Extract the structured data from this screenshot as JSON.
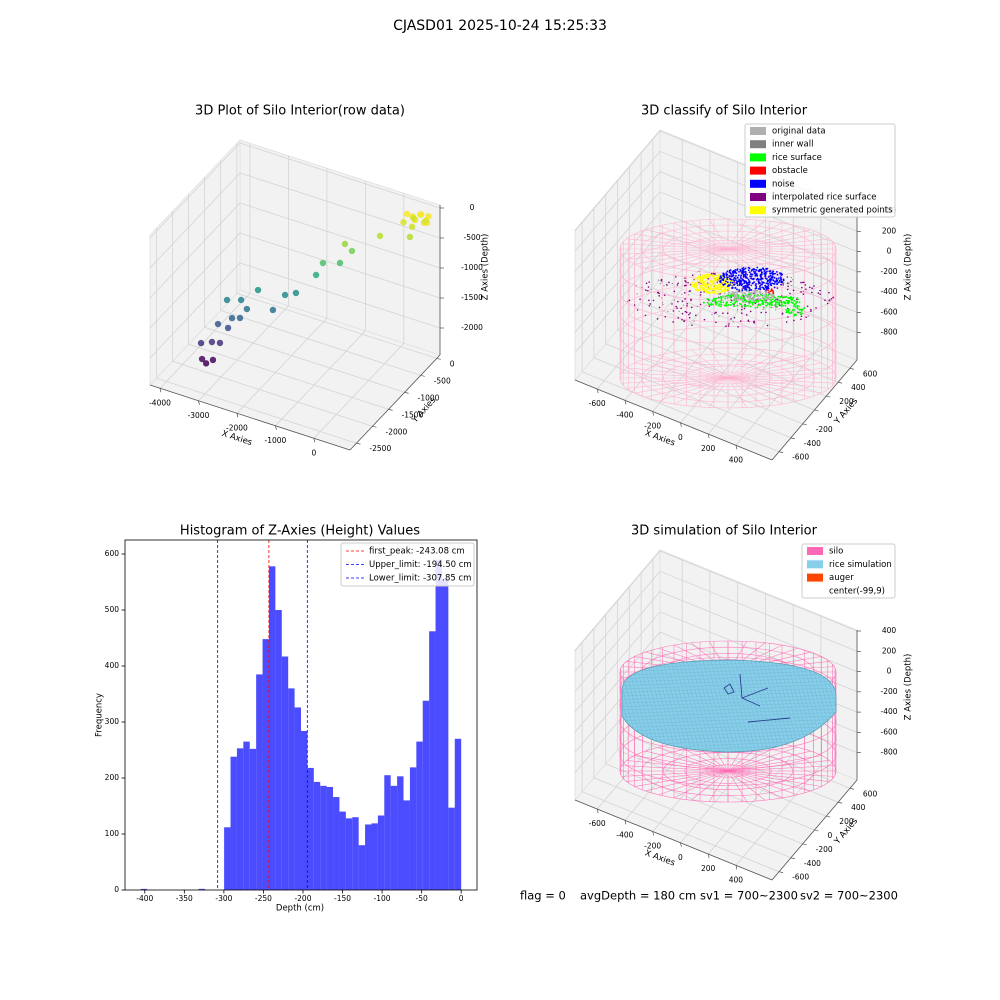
{
  "title": "CJASD01 2025-10-24 15:25:33",
  "chart_data": [
    {
      "type": "scatter3d",
      "title": "3D Plot of Silo Interior(row data)",
      "xlabel": "X Axies",
      "ylabel": "Y Axies",
      "zlabel": "Z Axies (Depth)",
      "xlim": [
        -4260,
        940
      ],
      "ylim": [
        -2700,
        100
      ],
      "zlim": [
        -2450,
        50
      ],
      "xticks": [
        -4000,
        -3000,
        -2000,
        -1000,
        0
      ],
      "yticks": [
        0,
        -500,
        -1000,
        -1500,
        -2000,
        -2500
      ],
      "zticks": [
        0,
        -500,
        -1000,
        -1500,
        -2000
      ],
      "colormap": "viridis",
      "x": [
        456,
        -131,
        -818,
        -682,
        -916,
        -1249,
        -1384,
        -1780,
        -1993,
        -2232,
        -2523,
        -2742,
        -2856,
        -3132,
        -3033,
        -2877,
        -3308,
        -3111,
        -3428,
        -3641,
        -3272,
        -3407,
        -3620,
        -3541,
        200,
        350,
        500,
        650,
        770,
        300,
        450,
        600,
        250,
        550,
        700,
        400
      ],
      "y": [
        -256,
        -485,
        -754,
        -698,
        -790,
        -922,
        -975,
        -1126,
        -1210,
        -1303,
        -1418,
        -1502,
        -1546,
        -1653,
        -1616,
        -1555,
        -1723,
        -1647,
        -1768,
        -1852,
        -1706,
        -1762,
        -1846,
        -1815,
        -150,
        -50,
        -150,
        -50,
        -100,
        50,
        80,
        60,
        -100,
        -20,
        30,
        -120
      ],
      "z": [
        -383,
        -358,
        -483,
        -603,
        -800,
        -795,
        -993,
        -1290,
        -1320,
        -1567,
        -1230,
        -1545,
        -1393,
        -1390,
        -1692,
        -1692,
        -1788,
        -1855,
        -2087,
        -2102,
        -2105,
        -2385,
        -2367,
        -2440,
        -250,
        -180,
        -150,
        -220,
        -170,
        -280,
        -200,
        -260,
        -130,
        -120,
        -150,
        -300
      ]
    },
    {
      "type": "classify3d",
      "title": "3D classify of Silo Interior",
      "xlabel": "X Axies",
      "ylabel": "Y Axies",
      "zlabel": "Z Axies (Depth)",
      "xlim": [
        -760,
        660
      ],
      "ylim": [
        -720,
        720
      ],
      "zlim": [
        -1070,
        410
      ],
      "xticks": [
        -600,
        -400,
        -200,
        0,
        200,
        400
      ],
      "yticks": [
        -600,
        -400,
        -200,
        0,
        200,
        400,
        600
      ],
      "zticks": [
        -800,
        -600,
        -400,
        -200,
        0,
        200,
        400
      ],
      "legend": "upper right",
      "series": [
        {
          "name": "original data",
          "color": "#b0b0b0"
        },
        {
          "name": "inner wall",
          "color": "#808080"
        },
        {
          "name": "rice surface",
          "color": "#00ff00"
        },
        {
          "name": "obstacle",
          "color": "#ff0000"
        },
        {
          "name": "noise",
          "color": "#0000ff"
        },
        {
          "name": "interpolated rice surface",
          "color": "#800080"
        },
        {
          "name": "symmetric generated points",
          "color": "#ffff00"
        }
      ]
    },
    {
      "type": "histogram",
      "title": "Histogram of Z-Axies (Height) Values",
      "xlabel": "Depth (cm)",
      "ylabel": "Frequency",
      "xlim": [
        -425,
        20
      ],
      "ylim": [
        0,
        625
      ],
      "xticks": [
        -400,
        -350,
        -300,
        -250,
        -200,
        -150,
        -100,
        -50,
        0
      ],
      "yticks": [
        0,
        100,
        200,
        300,
        400,
        500,
        600
      ],
      "color": "#0000ff",
      "alpha": 0.7,
      "bins": [
        -405,
        -396.9,
        -388.8,
        -380.7,
        -372.6,
        -364.5,
        -356.4,
        -348.3,
        -340.2,
        -332.1,
        -324,
        -315.9,
        -307.8,
        -299.7,
        -291.6,
        -283.5,
        -275.4,
        -267.3,
        -259.2,
        -251.1,
        -243,
        -234.9,
        -226.8,
        -218.7,
        -210.6,
        -202.5,
        -194.4,
        -186.3,
        -178.2,
        -170.1,
        -162,
        -153.9,
        -145.8,
        -137.7,
        -129.6,
        -121.5,
        -113.4,
        -105.3,
        -97.2,
        -89.1,
        -81,
        -72.9,
        -64.8,
        -56.7,
        -48.6,
        -40.5,
        -32.4,
        -24.3,
        -16.2,
        -8.1,
        0
      ],
      "values": [
        2,
        0,
        0,
        0,
        0,
        0,
        0,
        0,
        0,
        2,
        0,
        0,
        0,
        112,
        238,
        253,
        265,
        252,
        385,
        448,
        578,
        500,
        417,
        360,
        326,
        284,
        218,
        193,
        186,
        184,
        166,
        140,
        128,
        130,
        80,
        117,
        119,
        133,
        205,
        186,
        203,
        160,
        219,
        265,
        338,
        462,
        590,
        556,
        147,
        270
      ],
      "legend": "upper right",
      "vlines": [
        {
          "label": "first_peak: -243.08 cm",
          "value": -243.08,
          "color": "#ff0000"
        },
        {
          "label": "Upper_limit: -194.50 cm",
          "value": -194.5,
          "color": "#0000ff"
        },
        {
          "label": "Lower_limit: -307.85 cm",
          "value": -307.85,
          "color": "#0000ff"
        }
      ]
    },
    {
      "type": "surface3d",
      "title": "3D simulation of Silo Interior",
      "xlabel": "X Axies",
      "ylabel": "Y Axies",
      "zlabel": "Z Axies (Depth)",
      "xlim": [
        -760,
        660
      ],
      "ylim": [
        -720,
        720
      ],
      "zlim": [
        -1070,
        410
      ],
      "xticks": [
        -600,
        -400,
        -200,
        0,
        200,
        400
      ],
      "yticks": [
        -600,
        -400,
        -200,
        0,
        200,
        400,
        600
      ],
      "zticks": [
        -800,
        -600,
        -400,
        -200,
        0,
        200,
        400
      ],
      "legend": "upper right",
      "series": [
        {
          "name": "silo",
          "color": "#ff69b4"
        },
        {
          "name": "rice simulation",
          "color": "#87ceeb"
        },
        {
          "name": "auger",
          "color": "#ff4500"
        },
        {
          "name": "center(-99,9)",
          "color": "#ffffff"
        }
      ]
    }
  ],
  "footer": [
    "flag = 0",
    "avgDepth = 180 cm",
    "sv1 = 700~2300",
    "sv2 = 700~2300"
  ]
}
